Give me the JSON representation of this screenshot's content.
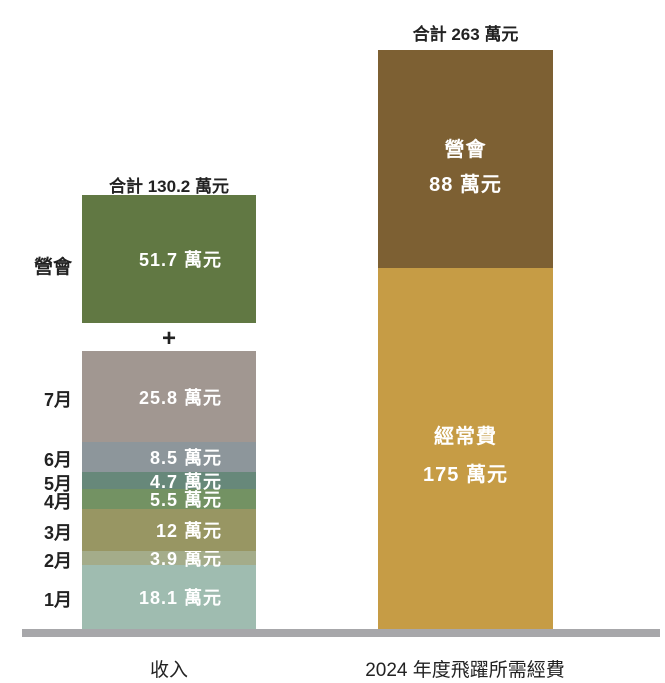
{
  "chart_data": {
    "type": "bar",
    "unit": "萬元",
    "categories": [
      "收入",
      "2024 年度飛躍所需經費"
    ],
    "income": {
      "total_label": "合計 130.2 萬元",
      "camp": {
        "name": "營會",
        "value": 51.7,
        "label": "51.7 萬元",
        "color": "#617843"
      },
      "plus": "+",
      "months": [
        {
          "name": "7月",
          "value": 25.8,
          "label": "25.8 萬元",
          "color": "#a19791"
        },
        {
          "name": "6月",
          "value": 8.5,
          "label": "8.5 萬元",
          "color": "#8d969b"
        },
        {
          "name": "5月",
          "value": 4.7,
          "label": "4.7 萬元",
          "color": "#67887a"
        },
        {
          "name": "4月",
          "value": 5.5,
          "label": "5.5 萬元",
          "color": "#739263"
        },
        {
          "name": "3月",
          "value": 12,
          "label": "12 萬元",
          "color": "#989663"
        },
        {
          "name": "2月",
          "value": 3.9,
          "label": "3.9 萬元",
          "color": "#a4ac8a"
        },
        {
          "name": "1月",
          "value": 18.1,
          "label": "18.1 萬元",
          "color": "#9fbcb0"
        }
      ]
    },
    "expense": {
      "total_label": "合計 263 萬元",
      "segments": [
        {
          "name": "營會",
          "value": 88,
          "label": "88 萬元",
          "color": "#7d6033"
        },
        {
          "name": "經常費",
          "value": 175,
          "label": "175 萬元",
          "color": "#c69c45"
        }
      ]
    },
    "baseline_color": "#a7a7aa"
  }
}
